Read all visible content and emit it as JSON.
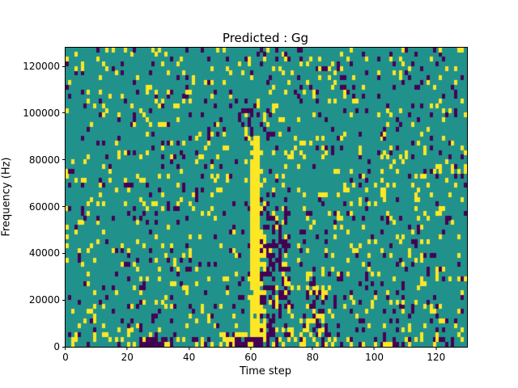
{
  "title": "Predicted : Gg",
  "axes": {
    "xlabel": "Time step",
    "ylabel": "Frequency (Hz)",
    "x_ticks": [
      0,
      20,
      40,
      60,
      80,
      100,
      120
    ],
    "y_ticks": [
      0,
      20000,
      40000,
      60000,
      80000,
      100000,
      120000
    ],
    "x_max": 130,
    "y_max": 128000
  },
  "chart_data": {
    "type": "heatmap",
    "title": "Predicted : Gg",
    "xlabel": "Time step",
    "ylabel": "Frequency (Hz)",
    "x_range": [
      0,
      130
    ],
    "y_range": [
      0,
      128000
    ],
    "grid": {
      "cols": 130,
      "rows": 64,
      "cell_hz": 2000
    },
    "colors": {
      "background": "#21918c",
      "high": "#fde725",
      "low": "#440154"
    },
    "legend": "none",
    "seed": 42,
    "base_probabilities": {
      "high": 0.075,
      "low": 0.06
    },
    "regions": [
      {
        "c0": 0,
        "c1": 129,
        "r0": 0,
        "r1": 1,
        "high": 0.2,
        "low": 0.2
      },
      {
        "c0": 24,
        "c1": 31,
        "r0": 0,
        "r1": 1,
        "high": 0.1,
        "low": 0.7
      },
      {
        "c0": 50,
        "c1": 59,
        "r0": 0,
        "r1": 2,
        "high": 0.5,
        "low": 0.2
      },
      {
        "c0": 55,
        "c1": 63,
        "r0": 0,
        "r1": 1,
        "high": 0.15,
        "low": 0.6
      },
      {
        "c0": 73,
        "c1": 85,
        "r0": 0,
        "r1": 3,
        "high": 0.4,
        "low": 0.15
      },
      {
        "c0": 78,
        "c1": 85,
        "r0": 3,
        "r1": 16,
        "high": 0.25,
        "low": 0.28
      },
      {
        "c0": 65,
        "c1": 72,
        "r0": 1,
        "r1": 30,
        "high": 0.1,
        "low": 0.4
      },
      {
        "c0": 63,
        "c1": 64,
        "r0": 2,
        "r1": 28,
        "high": 0.45,
        "low": 0.3
      },
      {
        "c0": 60,
        "c1": 62,
        "r0": 2,
        "r1": 44,
        "high": 0.92,
        "low": 0.03
      },
      {
        "c0": 57,
        "c1": 66,
        "r0": 44,
        "r1": 50,
        "high": 0.12,
        "low": 0.35
      }
    ]
  }
}
